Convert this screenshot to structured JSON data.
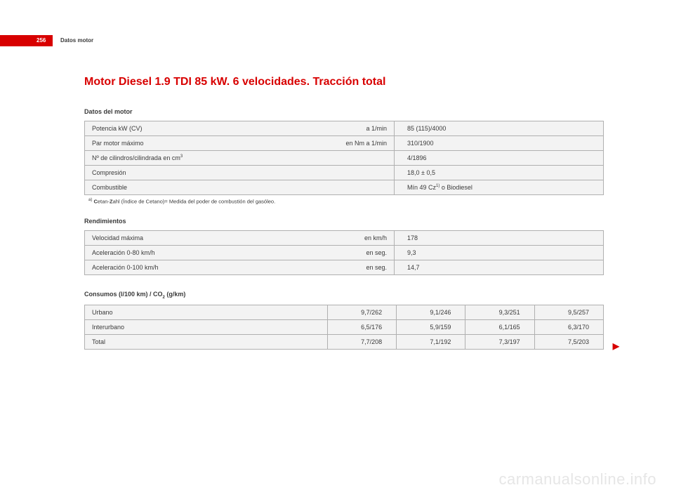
{
  "page": {
    "number": "256",
    "header": "Datos motor",
    "watermark": "carmanualsonline.info"
  },
  "section_title": "Motor Diesel 1.9 TDI 85 kW. 6 velocidades. Tracción total",
  "motor": {
    "title": "Datos del motor",
    "rows": [
      {
        "label_left": "Potencia kW  (CV)",
        "label_right": "a 1/min",
        "value": "85 (115)/4000"
      },
      {
        "label_left": "Par motor máximo",
        "label_right": "en Nm a 1/min",
        "value": "310/1900"
      },
      {
        "label_left": "Nº de cilindros/cilindrada en cm",
        "label_sup": "3",
        "label_right": "",
        "value": "4/1896"
      },
      {
        "label_left": "Compresión",
        "label_right": "",
        "value": "18,0 ± 0,5"
      },
      {
        "label_left": "Combustible",
        "label_right": "",
        "value_prefix": "Mín 49 Cz",
        "value_sup": "1)",
        "value_suffix": " o Biodiesel"
      }
    ],
    "footnote_sup": "a)",
    "footnote_bold1": "C",
    "footnote_mid": "etan-",
    "footnote_bold2": "Z",
    "footnote_rest": "ahl (Índice de Cetano)= Medida del poder de combustión del gasóleo."
  },
  "rendimientos": {
    "title": "Rendimientos",
    "rows": [
      {
        "label_left": "Velocidad máxima",
        "label_right": "en km/h",
        "value": "178"
      },
      {
        "label_left": "Aceleración 0-80 km/h",
        "label_right": "en seg.",
        "value": "9,3"
      },
      {
        "label_left": "Aceleración 0-100 km/h",
        "label_right": "en seg.",
        "value": "14,7"
      }
    ]
  },
  "consumos": {
    "title_prefix": "Consumos (l/100 km) / CO",
    "title_sub": "2",
    "title_suffix": " (g/km)",
    "rows": [
      {
        "label": "Urbano",
        "v1": "9,7/262",
        "v2": "9,1/246",
        "v3": "9,3/251",
        "v4": "9,5/257"
      },
      {
        "label": "Interurbano",
        "v1": "6,5/176",
        "v2": "5,9/159",
        "v3": "6,1/165",
        "v4": "6,3/170"
      },
      {
        "label": "Total",
        "v1": "7,7/208",
        "v2": "7,1/192",
        "v3": "7,3/197",
        "v4": "7,5/203"
      }
    ]
  },
  "arrow": "▶"
}
